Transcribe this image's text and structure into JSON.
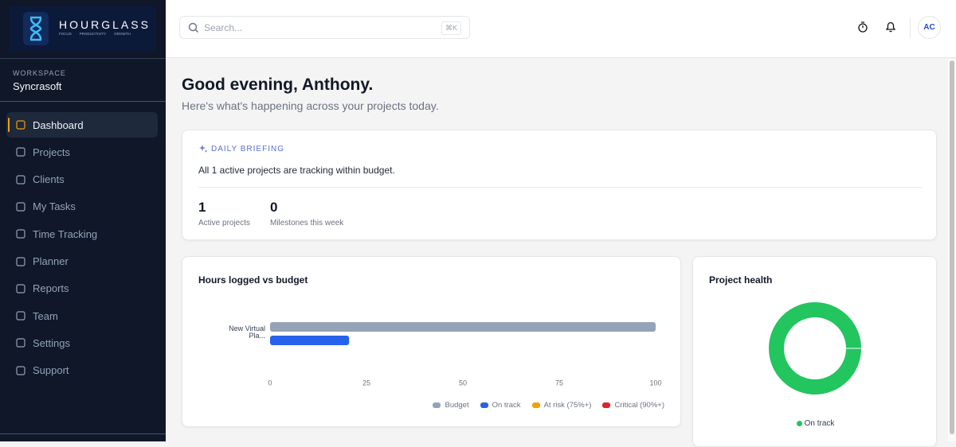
{
  "brand": {
    "name": "HOURGLASS",
    "tagline": [
      "FOCUS",
      "PRODUCTIVITY",
      "GROWTH"
    ]
  },
  "workspace": {
    "label": "WORKSPACE",
    "name": "Syncrasoft"
  },
  "nav": {
    "items": [
      "Dashboard",
      "Projects",
      "Clients",
      "My Tasks",
      "Time Tracking",
      "Planner",
      "Reports",
      "Team",
      "Settings",
      "Support"
    ],
    "active": 0
  },
  "search": {
    "placeholder": "Search...",
    "shortcut": "⌘K"
  },
  "user": {
    "initials": "AC"
  },
  "greeting": {
    "title": "Good evening, Anthony.",
    "subtitle": "Here's what's happening across your projects today."
  },
  "briefing": {
    "label": "DAILY BRIEFING",
    "message": "All 1 active projects are tracking within budget.",
    "stats": [
      {
        "value": 1,
        "label": "Active projects"
      },
      {
        "value": 0,
        "label": "Milestones this week"
      }
    ]
  },
  "chart_data": [
    {
      "type": "bar",
      "orientation": "horizontal",
      "title": "Hours logged vs budget",
      "categories": [
        "New Virtual Pla..."
      ],
      "series": [
        {
          "name": "Budget",
          "color": "#94a3b8",
          "values": [
            100
          ]
        },
        {
          "name": "On track",
          "color": "#2563eb",
          "values": [
            20.5
          ]
        },
        {
          "name": "At risk (75%+)",
          "color": "#f59e0b",
          "values": [
            null
          ]
        },
        {
          "name": "Critical (90%+)",
          "color": "#dc2626",
          "values": [
            null
          ]
        }
      ],
      "xlim": [
        0,
        100
      ],
      "xticks": [
        0,
        25,
        50,
        75,
        100
      ]
    },
    {
      "type": "pie",
      "donut": true,
      "title": "Project health",
      "categories": [
        "On track"
      ],
      "values": [
        1
      ],
      "colors": [
        "#22c55e"
      ]
    }
  ]
}
